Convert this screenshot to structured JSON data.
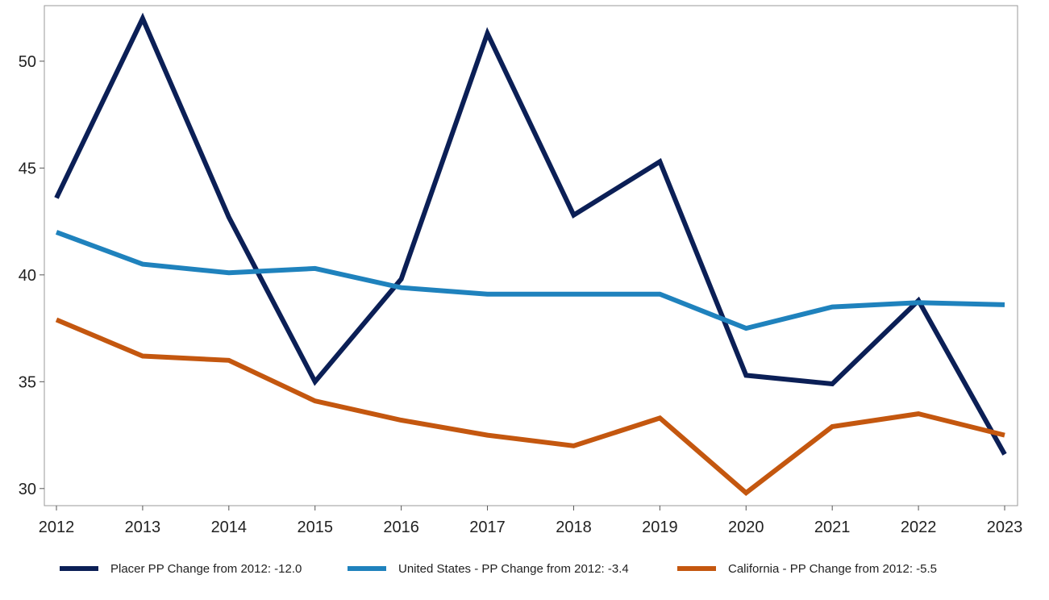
{
  "chart_data": {
    "type": "line",
    "title": "",
    "xlabel": "",
    "ylabel": "",
    "x": [
      2012,
      2013,
      2014,
      2015,
      2016,
      2017,
      2018,
      2019,
      2020,
      2021,
      2022,
      2023
    ],
    "xlim": [
      2012,
      2023
    ],
    "ylim": [
      29.2,
      52.6
    ],
    "yticks": [
      30,
      35,
      40,
      45,
      50
    ],
    "grid": false,
    "legend_position": "bottom",
    "series": [
      {
        "name": "Placer PP Change from 2012: -12.0",
        "color": "#0b1f56",
        "values": [
          43.6,
          52.0,
          42.7,
          35.0,
          39.8,
          51.3,
          42.8,
          45.3,
          35.3,
          34.9,
          38.8,
          31.6
        ]
      },
      {
        "name": "United States - PP Change from 2012: -3.4",
        "color": "#1f82bd",
        "values": [
          42.0,
          40.5,
          40.1,
          40.3,
          39.4,
          39.1,
          39.1,
          39.1,
          37.5,
          38.5,
          38.7,
          38.6
        ]
      },
      {
        "name": "California - PP Change from 2012: -5.5",
        "color": "#c4570f",
        "values": [
          37.9,
          36.2,
          36.0,
          34.1,
          33.2,
          32.5,
          32.0,
          33.3,
          29.8,
          32.9,
          33.5,
          32.5
        ]
      }
    ]
  }
}
